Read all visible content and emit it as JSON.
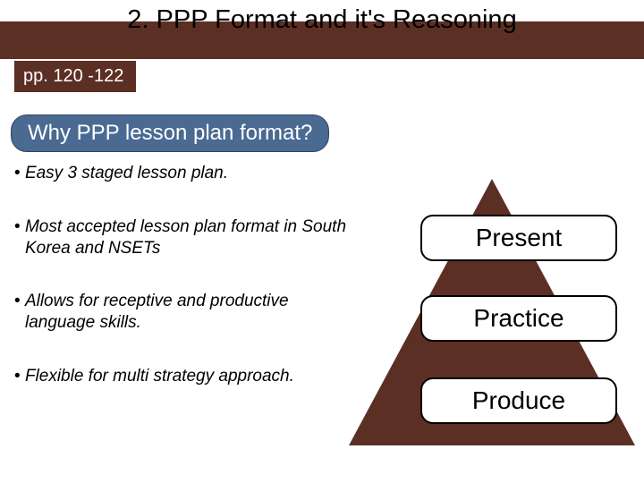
{
  "colors": {
    "brown": "#5c2f24",
    "blue_pill": "#4a6a92",
    "white": "#ffffff",
    "black": "#000000"
  },
  "title": "2. PPP Format and it's Reasoning",
  "page_ref": "pp. 120 -122",
  "subheading": "Why PPP lesson plan format?",
  "bullets": [
    "Easy 3 staged lesson plan.",
    "Most accepted lesson plan format in South Korea and NSETs",
    "Allows for receptive and productive language skills.",
    "Flexible for multi strategy approach."
  ],
  "triangle": {
    "type": "infographic",
    "shape": "triangle",
    "fill_color": "#5c2f24",
    "stages": [
      {
        "label": "Present"
      },
      {
        "label": "Practice"
      },
      {
        "label": "Produce"
      }
    ],
    "pill": {
      "bg": "#ffffff",
      "border": "#000000",
      "fontsize": 28,
      "radius": 14
    }
  },
  "typography": {
    "title_fontsize": 29,
    "subheading_fontsize": 24,
    "bullet_fontsize": 19,
    "bullet_style": "italic",
    "stage_fontsize": 28
  }
}
